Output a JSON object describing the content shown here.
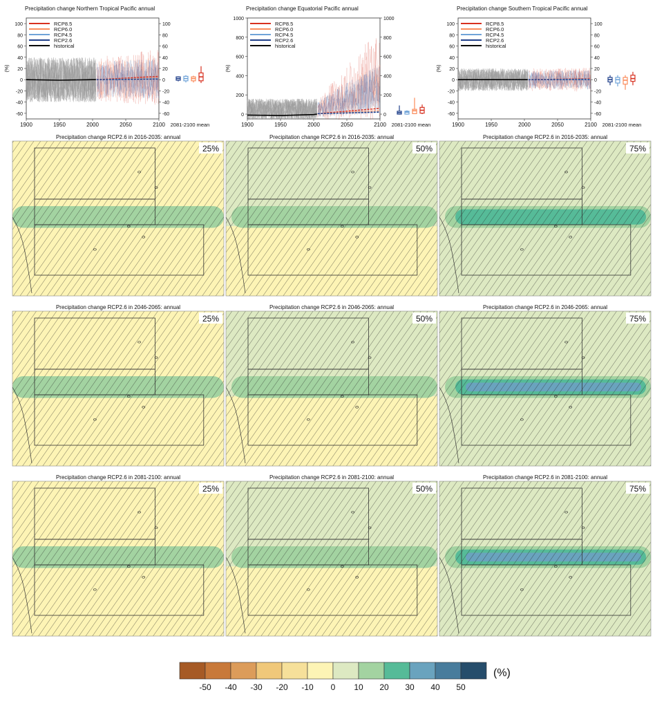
{
  "legend_labels": [
    "RCP8.5",
    "RCP6.0",
    "RCP4.5",
    "RCP2.6",
    "historical"
  ],
  "colors": {
    "rcp85": "#d7301f",
    "rcp60": "#fb8b5a",
    "rcp45": "#6fa3d8",
    "rcp26": "#1f3f8a",
    "historical": "#000000",
    "hatch": "#222222"
  },
  "timeseries": {
    "years_ticks": [
      "1900",
      "1950",
      "2000",
      "2050",
      "2100"
    ],
    "mean_label": "2081-2100 mean",
    "ylabel": "(%)"
  },
  "chart_data": [
    {
      "type": "line",
      "title": "Precipitation change Northern Tropical Pacific annual",
      "x": [
        1900,
        2100
      ],
      "ylim": [
        -70,
        110
      ],
      "yticks": [
        -60,
        -40,
        -20,
        0,
        20,
        40,
        60,
        80,
        100
      ],
      "historical_mean": [
        [
          1900,
          0
        ],
        [
          1950,
          -1
        ],
        [
          2000,
          0
        ],
        [
          2005,
          0
        ]
      ],
      "spread": {
        "historical": [
          -40,
          40
        ],
        "future": [
          -45,
          55
        ]
      },
      "projection_means": [
        {
          "name": "RCP8.5",
          "values": [
            [
              2006,
              0
            ],
            [
              2100,
              6
            ]
          ]
        },
        {
          "name": "RCP6.0",
          "values": [
            [
              2006,
              0
            ],
            [
              2100,
              3
            ]
          ]
        },
        {
          "name": "RCP4.5",
          "values": [
            [
              2006,
              0
            ],
            [
              2100,
              2
            ]
          ]
        },
        {
          "name": "RCP2.6",
          "values": [
            [
              2006,
              0
            ],
            [
              2100,
              1
            ]
          ]
        }
      ],
      "box_2081_2100": [
        {
          "name": "RCP2.6",
          "median": 2,
          "q1": -1,
          "q3": 5,
          "min": -3,
          "max": 6
        },
        {
          "name": "RCP4.5",
          "median": 2,
          "q1": -2,
          "q3": 6,
          "min": -5,
          "max": 8
        },
        {
          "name": "RCP6.0",
          "median": 2,
          "q1": -2,
          "q3": 5,
          "min": -5,
          "max": 7
        },
        {
          "name": "RCP8.5",
          "median": 5,
          "q1": -2,
          "q3": 12,
          "min": -6,
          "max": 24
        }
      ]
    },
    {
      "type": "line",
      "title": "Precipitation change Equatorial Pacific annual",
      "x": [
        1900,
        2100
      ],
      "ylim": [
        -50,
        1000
      ],
      "yticks": [
        0,
        200,
        400,
        600,
        800,
        1000
      ],
      "historical_mean": [
        [
          1900,
          -10
        ],
        [
          1950,
          -15
        ],
        [
          2000,
          -5
        ],
        [
          2005,
          0
        ]
      ],
      "spread": {
        "historical": [
          -60,
          160
        ],
        "future": [
          -60,
          900
        ]
      },
      "projection_means": [
        {
          "name": "RCP8.5",
          "values": [
            [
              2006,
              5
            ],
            [
              2100,
              60
            ]
          ]
        },
        {
          "name": "RCP6.0",
          "values": [
            [
              2006,
              5
            ],
            [
              2100,
              35
            ]
          ]
        },
        {
          "name": "RCP4.5",
          "values": [
            [
              2006,
              5
            ],
            [
              2100,
              25
            ]
          ]
        },
        {
          "name": "RCP2.6",
          "values": [
            [
              2006,
              5
            ],
            [
              2100,
              20
            ]
          ]
        }
      ],
      "box_2081_2100": [
        {
          "name": "RCP2.6",
          "median": 15,
          "q1": 0,
          "q3": 30,
          "min": -5,
          "max": 90
        },
        {
          "name": "RCP4.5",
          "median": 20,
          "q1": 0,
          "q3": 30,
          "min": -5,
          "max": 40
        },
        {
          "name": "RCP6.0",
          "median": 35,
          "q1": 5,
          "q3": 50,
          "min": 0,
          "max": 170
        },
        {
          "name": "RCP8.5",
          "median": 40,
          "q1": 10,
          "q3": 70,
          "min": 0,
          "max": 100
        }
      ]
    },
    {
      "type": "line",
      "title": "Precipitation change Southern Tropical Pacific annual",
      "x": [
        1900,
        2100
      ],
      "ylim": [
        -70,
        110
      ],
      "yticks": [
        -60,
        -40,
        -20,
        0,
        20,
        40,
        60,
        80,
        100
      ],
      "historical_mean": [
        [
          1900,
          0
        ],
        [
          1950,
          0
        ],
        [
          2000,
          0
        ],
        [
          2005,
          0
        ]
      ],
      "spread": {
        "historical": [
          -20,
          20
        ],
        "future": [
          -22,
          22
        ]
      },
      "projection_means": [
        {
          "name": "RCP8.5",
          "values": [
            [
              2006,
              0
            ],
            [
              2100,
              2
            ]
          ]
        },
        {
          "name": "RCP6.0",
          "values": [
            [
              2006,
              0
            ],
            [
              2100,
              1
            ]
          ]
        },
        {
          "name": "RCP4.5",
          "values": [
            [
              2006,
              0
            ],
            [
              2100,
              1
            ]
          ]
        },
        {
          "name": "RCP2.6",
          "values": [
            [
              2006,
              0
            ],
            [
              2100,
              0
            ]
          ]
        }
      ],
      "box_2081_2100": [
        {
          "name": "RCP2.6",
          "median": 0,
          "q1": -4,
          "q3": 4,
          "min": -10,
          "max": 8
        },
        {
          "name": "RCP4.5",
          "median": 0,
          "q1": -6,
          "q3": 4,
          "min": -12,
          "max": 8
        },
        {
          "name": "RCP6.0",
          "median": -1,
          "q1": -8,
          "q3": 4,
          "min": -18,
          "max": 8
        },
        {
          "name": "RCP8.5",
          "median": 2,
          "q1": -3,
          "q3": 8,
          "min": -10,
          "max": 14
        }
      ]
    },
    {
      "type": "heatmap",
      "maps": [
        {
          "title": "Precipitation change RCP2.6 in 2016-2035: annual",
          "percentile": "25%",
          "equatorial_band_change": 7,
          "north_change": -2,
          "south_change": -5
        },
        {
          "title": "Precipitation change RCP2.6 in 2016-2035: annual",
          "percentile": "50%",
          "equatorial_band_change": 13,
          "north_change": 3,
          "south_change": -2
        },
        {
          "title": "Precipitation change RCP2.6 in 2016-2035: annual",
          "percentile": "75%",
          "equatorial_band_change": 21,
          "north_change": 7,
          "south_change": 4
        },
        {
          "title": "Precipitation change RCP2.6 in 2046-2065: annual",
          "percentile": "25%",
          "equatorial_band_change": 7,
          "north_change": -3,
          "south_change": -6
        },
        {
          "title": "Precipitation change RCP2.6 in 2046-2065: annual",
          "percentile": "50%",
          "equatorial_band_change": 16,
          "north_change": 3,
          "south_change": -2
        },
        {
          "title": "Precipitation change RCP2.6 in 2046-2065: annual",
          "percentile": "75%",
          "equatorial_band_change": 28,
          "north_change": 8,
          "south_change": 5
        },
        {
          "title": "Precipitation change RCP2.6 in 2081-2100: annual",
          "percentile": "25%",
          "equatorial_band_change": 7,
          "north_change": -3,
          "south_change": -6
        },
        {
          "title": "Precipitation change RCP2.6 in 2081-2100: annual",
          "percentile": "50%",
          "equatorial_band_change": 16,
          "north_change": 3,
          "south_change": -2
        },
        {
          "title": "Precipitation change RCP2.6 in 2081-2100: annual",
          "percentile": "75%",
          "equatorial_band_change": 33,
          "north_change": 8,
          "south_change": 5
        }
      ],
      "colorbar": {
        "unit": "(%)",
        "ticks": [
          "-50",
          "-40",
          "-30",
          "-20",
          "-10",
          "0",
          "10",
          "20",
          "30",
          "40",
          "50"
        ],
        "colors": [
          "#a65a25",
          "#c8793a",
          "#dc9c5a",
          "#f0c87a",
          "#f6e09a",
          "#fdf4b5",
          "#dde9c2",
          "#a3d3a1",
          "#56bb98",
          "#6aa3be",
          "#487c9c",
          "#264d6b"
        ]
      }
    }
  ]
}
